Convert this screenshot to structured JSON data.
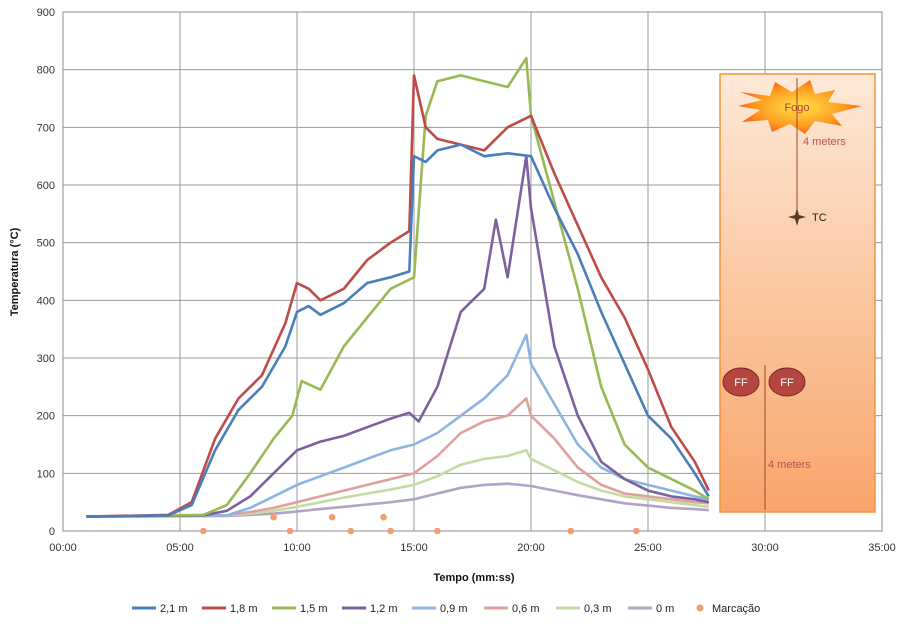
{
  "chart_data": {
    "type": "line",
    "xlabel": "Tempo (mm:ss)",
    "ylabel": "Temperatura (°C)",
    "xlim": [
      0,
      35
    ],
    "ylim": [
      0,
      900
    ],
    "x_ticks": [
      "00:00",
      "05:00",
      "10:00",
      "15:00",
      "20:00",
      "25:00",
      "30:00",
      "35:00"
    ],
    "y_ticks": [
      "0",
      "100",
      "200",
      "300",
      "400",
      "500",
      "600",
      "700",
      "800",
      "900"
    ],
    "grid": true,
    "legend_position": "bottom",
    "series": [
      {
        "name": "2,1 m",
        "color": "#4a7ebb",
        "x": [
          1,
          4.5,
          5.5,
          6.5,
          7.5,
          8.5,
          9.5,
          10,
          10.5,
          11,
          12,
          13,
          14,
          14.8,
          15,
          15.5,
          16,
          17,
          18,
          19,
          20,
          21,
          22,
          23,
          24,
          25,
          26,
          27,
          27.6
        ],
        "y": [
          25,
          27,
          45,
          140,
          210,
          250,
          320,
          380,
          390,
          375,
          395,
          430,
          440,
          450,
          650,
          640,
          660,
          670,
          650,
          655,
          650,
          560,
          480,
          380,
          290,
          200,
          160,
          100,
          60
        ]
      },
      {
        "name": "1,8 m",
        "color": "#be4b48",
        "x": [
          1,
          4.5,
          5.5,
          6.5,
          7.5,
          8.5,
          9.5,
          10,
          10.5,
          11,
          12,
          13,
          14,
          14.8,
          15,
          15.5,
          16,
          17,
          18,
          19,
          20,
          21,
          22,
          23,
          24,
          25,
          26,
          27,
          27.6
        ],
        "y": [
          25,
          28,
          50,
          160,
          230,
          270,
          360,
          430,
          420,
          400,
          420,
          470,
          500,
          520,
          790,
          700,
          680,
          670,
          660,
          700,
          720,
          620,
          530,
          440,
          370,
          280,
          180,
          120,
          70
        ]
      },
      {
        "name": "1,5 m",
        "color": "#98b954",
        "x": [
          1,
          6,
          7,
          8,
          9,
          9.8,
          10.2,
          11,
          12,
          13,
          14,
          15,
          15.5,
          16,
          17,
          18,
          19,
          19.8,
          20,
          21,
          22,
          23,
          24,
          25,
          26,
          27,
          27.6
        ],
        "y": [
          25,
          28,
          45,
          100,
          160,
          200,
          260,
          245,
          320,
          370,
          420,
          440,
          720,
          780,
          790,
          780,
          770,
          820,
          720,
          570,
          420,
          250,
          150,
          110,
          90,
          70,
          55
        ]
      },
      {
        "name": "1,2 m",
        "color": "#7d60a0",
        "x": [
          1,
          6,
          7,
          8,
          9,
          10,
          11,
          12,
          13,
          14,
          14.8,
          15.2,
          16,
          17,
          18,
          18.5,
          19,
          19.8,
          20,
          21,
          22,
          23,
          24,
          25,
          26,
          27,
          27.6
        ],
        "y": [
          25,
          27,
          35,
          60,
          100,
          140,
          155,
          165,
          180,
          195,
          205,
          190,
          250,
          380,
          420,
          540,
          440,
          650,
          560,
          320,
          200,
          120,
          90,
          70,
          60,
          55,
          50
        ]
      },
      {
        "name": "0,9 m",
        "color": "#8cb4e2",
        "x": [
          1,
          7,
          8,
          9,
          10,
          11,
          12,
          13,
          14,
          15,
          16,
          17,
          18,
          19,
          19.8,
          20,
          21,
          22,
          23,
          24,
          25,
          26,
          27,
          27.6
        ],
        "y": [
          25,
          27,
          40,
          60,
          80,
          95,
          110,
          125,
          140,
          150,
          170,
          200,
          230,
          270,
          340,
          290,
          220,
          150,
          110,
          90,
          80,
          70,
          60,
          55
        ]
      },
      {
        "name": "0,6 m",
        "color": "#e0a09e",
        "x": [
          1,
          7,
          8,
          9,
          10,
          11,
          12,
          13,
          14,
          15,
          16,
          17,
          18,
          19,
          19.8,
          20,
          21,
          22,
          23,
          24,
          25,
          26,
          27,
          27.6
        ],
        "y": [
          25,
          27,
          33,
          40,
          50,
          60,
          70,
          80,
          90,
          100,
          130,
          170,
          190,
          200,
          230,
          200,
          160,
          110,
          80,
          65,
          60,
          55,
          50,
          48
        ]
      },
      {
        "name": "0,3 m",
        "color": "#c4dca4",
        "x": [
          1,
          7,
          8,
          9,
          10,
          11,
          12,
          13,
          14,
          15,
          16,
          17,
          18,
          19,
          19.8,
          20,
          21,
          22,
          23,
          24,
          25,
          26,
          27,
          27.6
        ],
        "y": [
          25,
          27,
          30,
          35,
          42,
          50,
          58,
          65,
          72,
          80,
          95,
          115,
          125,
          130,
          140,
          125,
          105,
          85,
          70,
          60,
          55,
          50,
          45,
          42
        ]
      },
      {
        "name": "0 m",
        "color": "#b3a2c7",
        "x": [
          1,
          7,
          8,
          9,
          10,
          11,
          12,
          13,
          14,
          15,
          16,
          17,
          18,
          19,
          20,
          21,
          22,
          23,
          24,
          25,
          26,
          27,
          27.6
        ],
        "y": [
          25,
          26,
          28,
          30,
          34,
          38,
          42,
          46,
          50,
          55,
          65,
          75,
          80,
          82,
          78,
          70,
          62,
          55,
          48,
          44,
          40,
          38,
          36
        ]
      }
    ],
    "markers": {
      "name": "Marcação",
      "color": "#f0a070",
      "points": [
        [
          6,
          0
        ],
        [
          9,
          24
        ],
        [
          9.7,
          0
        ],
        [
          11.5,
          24
        ],
        [
          12.3,
          0
        ],
        [
          13.7,
          24
        ],
        [
          14,
          0
        ],
        [
          16,
          0
        ],
        [
          21.7,
          0
        ],
        [
          24.5,
          0
        ]
      ]
    },
    "inset": {
      "fire_label": "Fogo",
      "distance_top": "4 meters",
      "tc_label": "TC",
      "ff_label_1": "FF",
      "ff_label_2": "FF",
      "distance_bottom": "4 meters"
    }
  }
}
